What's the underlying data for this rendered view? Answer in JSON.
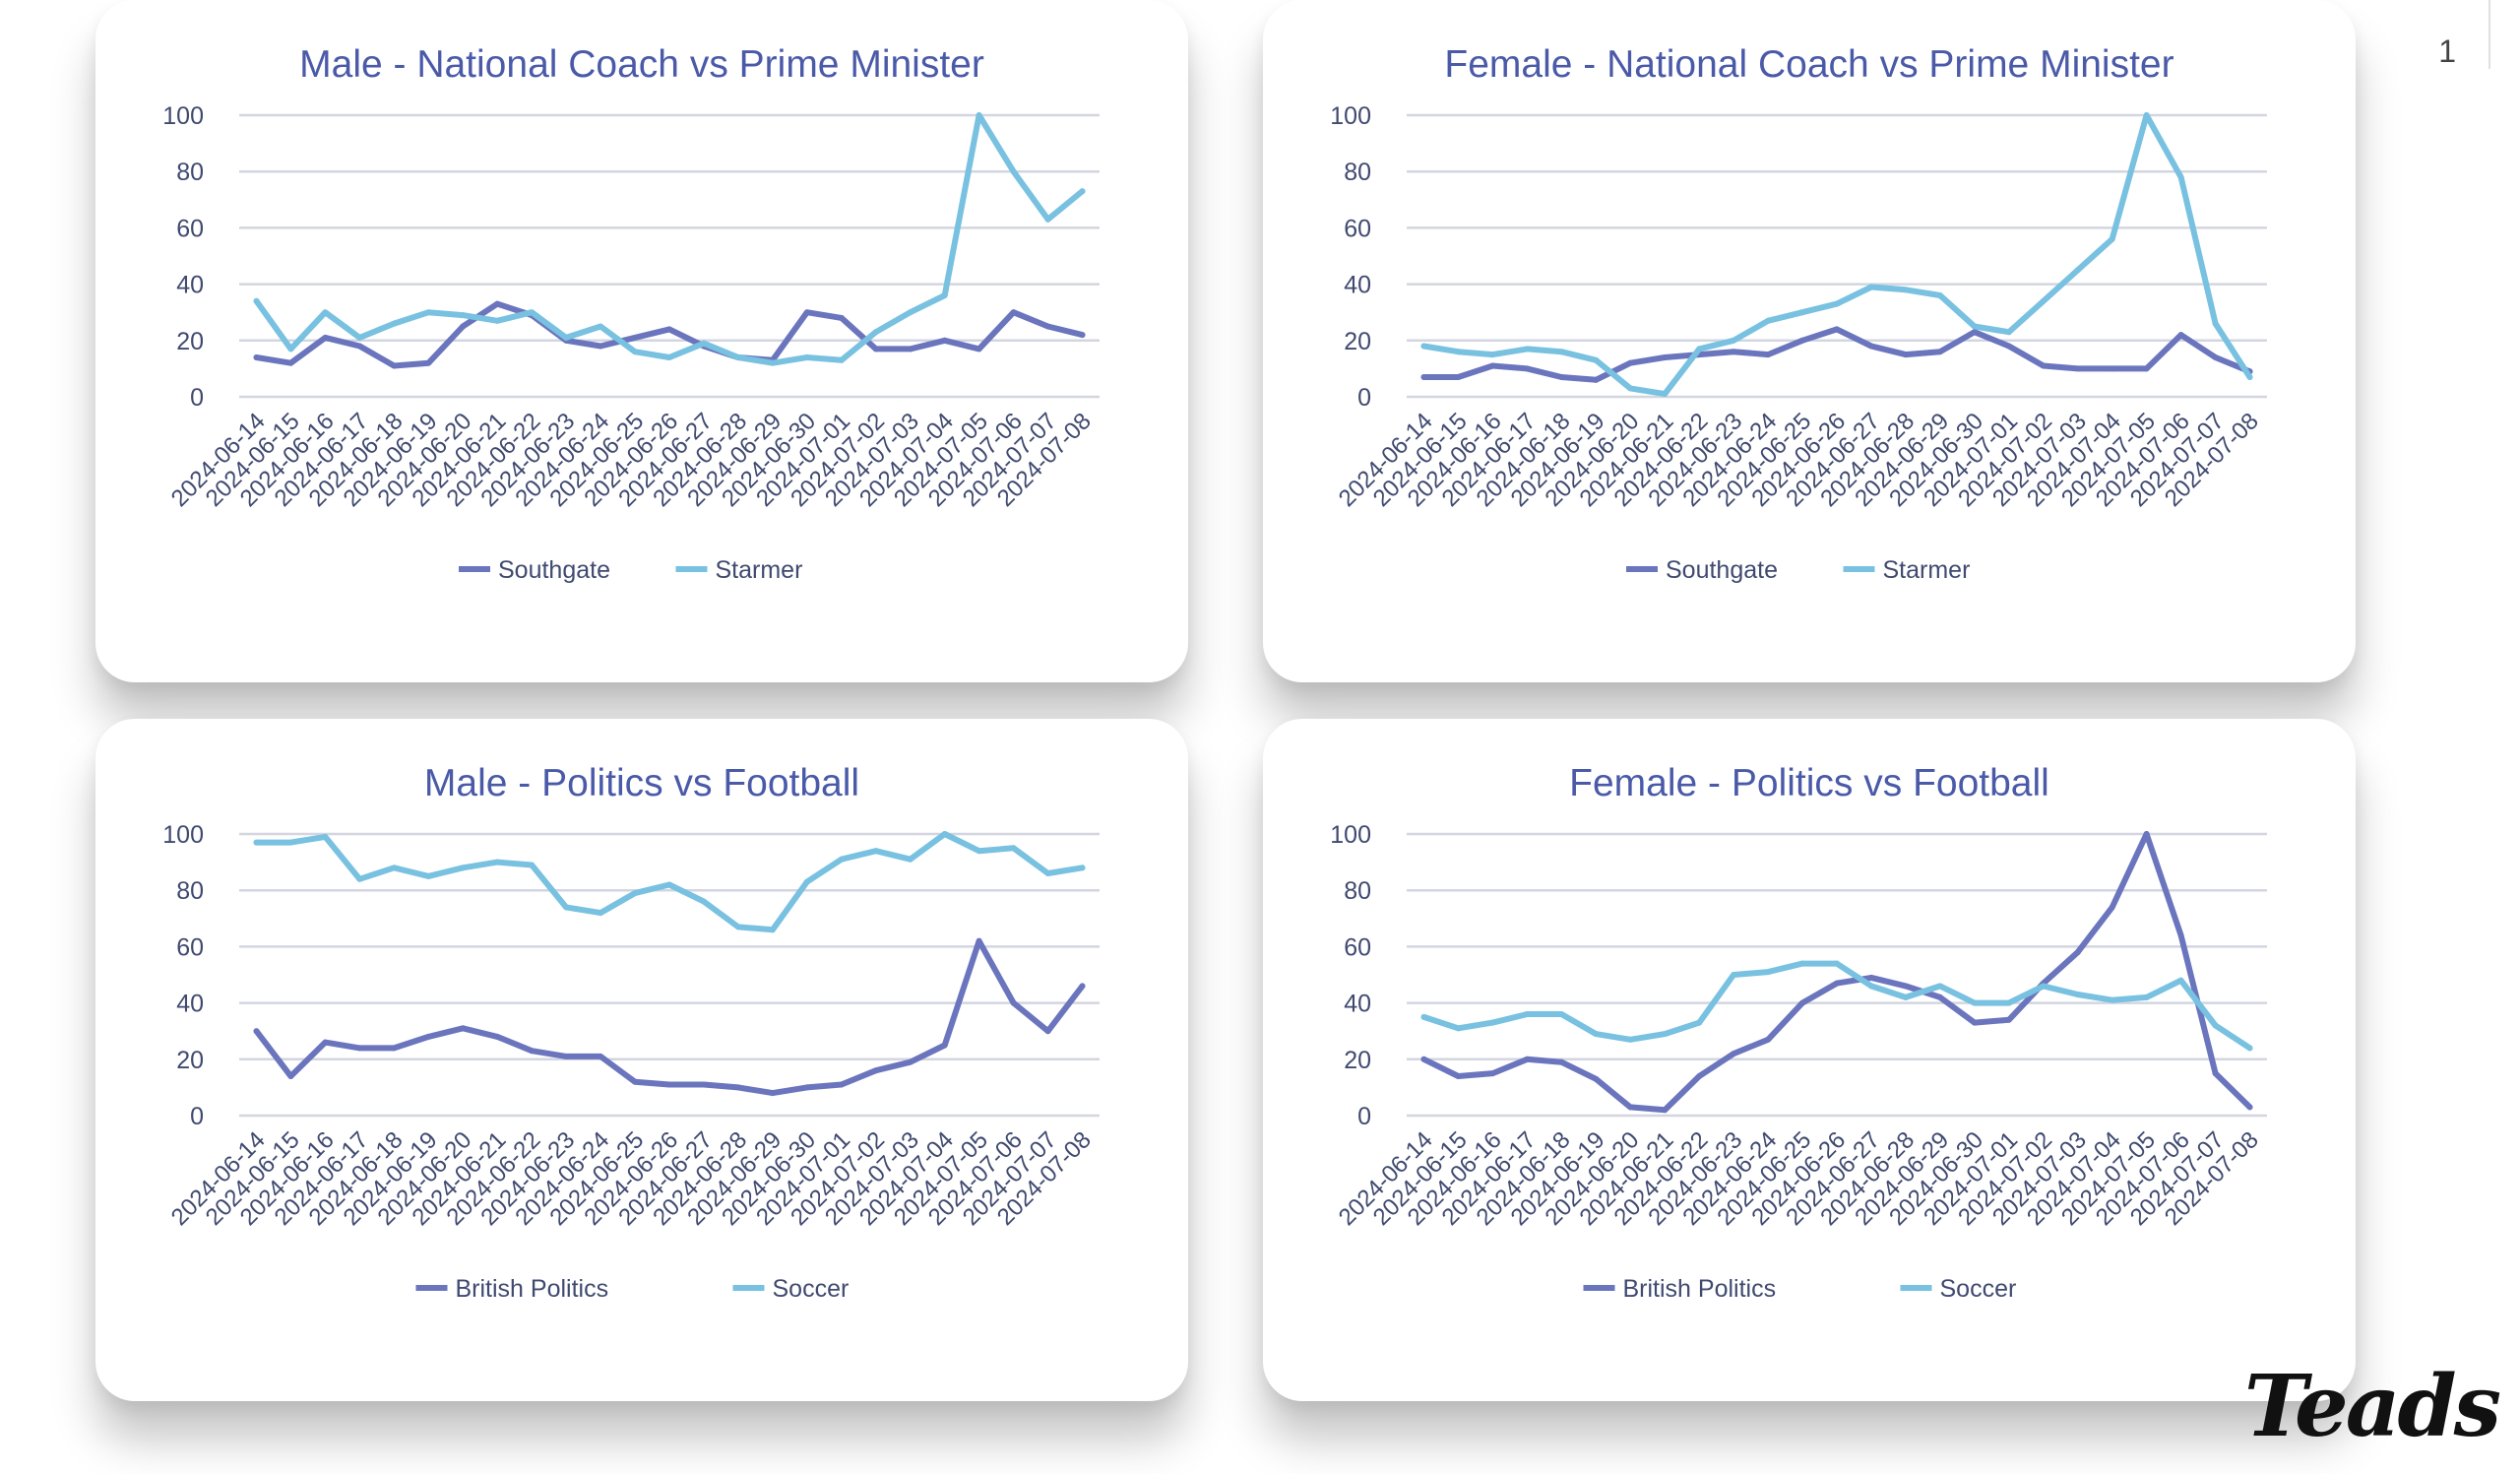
{
  "page": {
    "number": "1",
    "brand": "Teads"
  },
  "palette": {
    "series1": "#6b75bd",
    "series2": "#78c1e0",
    "grid": "#d3d6e0",
    "title": "#4a5aa8",
    "text": "#404a70"
  },
  "dates": [
    "2024-06-14",
    "2024-06-15",
    "2024-06-16",
    "2024-06-17",
    "2024-06-18",
    "2024-06-19",
    "2024-06-20",
    "2024-06-21",
    "2024-06-22",
    "2024-06-23",
    "2024-06-24",
    "2024-06-25",
    "2024-06-26",
    "2024-06-27",
    "2024-06-28",
    "2024-06-29",
    "2024-06-30",
    "2024-07-01",
    "2024-07-02",
    "2024-07-03",
    "2024-07-04",
    "2024-07-05",
    "2024-07-06",
    "2024-07-07",
    "2024-07-08"
  ],
  "chart_data": [
    {
      "type": "line",
      "title": "Male - National Coach vs Prime Minister",
      "ylim": [
        0,
        100
      ],
      "yticks": [
        "0",
        "20",
        "40",
        "60",
        "80",
        "100"
      ],
      "grid": true,
      "legend": "bottom",
      "series": [
        {
          "name": "Southgate",
          "values": [
            14,
            12,
            21,
            18,
            11,
            12,
            25,
            33,
            29,
            20,
            18,
            21,
            24,
            18,
            14,
            13,
            30,
            28,
            17,
            17,
            20,
            17,
            30,
            25,
            22
          ]
        },
        {
          "name": "Starmer",
          "values": [
            34,
            17,
            30,
            21,
            26,
            30,
            29,
            27,
            30,
            21,
            25,
            16,
            14,
            19,
            14,
            12,
            14,
            13,
            23,
            30,
            36,
            100,
            80,
            63,
            73
          ]
        }
      ]
    },
    {
      "type": "line",
      "title": "Female - National Coach vs Prime Minister",
      "ylim": [
        0,
        100
      ],
      "yticks": [
        "0",
        "20",
        "40",
        "60",
        "80",
        "100"
      ],
      "grid": true,
      "legend": "bottom",
      "series": [
        {
          "name": "Southgate",
          "values": [
            7,
            7,
            11,
            10,
            7,
            6,
            12,
            14,
            15,
            16,
            15,
            20,
            24,
            18,
            15,
            16,
            23,
            18,
            11,
            10,
            10,
            10,
            22,
            14,
            9
          ]
        },
        {
          "name": "Starmer",
          "values": [
            18,
            16,
            15,
            17,
            16,
            13,
            3,
            1,
            17,
            20,
            27,
            30,
            33,
            39,
            38,
            36,
            25,
            23,
            34,
            45,
            56,
            100,
            78,
            26,
            7
          ]
        }
      ]
    },
    {
      "type": "line",
      "title": "Male - Politics vs Football",
      "ylim": [
        0,
        100
      ],
      "yticks": [
        "0",
        "20",
        "40",
        "60",
        "80",
        "100"
      ],
      "grid": true,
      "legend": "bottom",
      "series": [
        {
          "name": "British Politics",
          "values": [
            30,
            14,
            26,
            24,
            24,
            28,
            31,
            28,
            23,
            21,
            21,
            12,
            11,
            11,
            10,
            8,
            10,
            11,
            16,
            19,
            25,
            62,
            40,
            30,
            46
          ]
        },
        {
          "name": "Soccer",
          "values": [
            97,
            97,
            99,
            84,
            88,
            85,
            88,
            90,
            89,
            74,
            72,
            79,
            82,
            76,
            67,
            66,
            83,
            91,
            94,
            91,
            100,
            94,
            95,
            86,
            88
          ]
        }
      ]
    },
    {
      "type": "line",
      "title": "Female - Politics vs Football",
      "ylim": [
        0,
        100
      ],
      "yticks": [
        "0",
        "20",
        "40",
        "60",
        "80",
        "100"
      ],
      "grid": true,
      "legend": "bottom",
      "series": [
        {
          "name": "British Politics",
          "values": [
            20,
            14,
            15,
            20,
            19,
            13,
            3,
            2,
            14,
            22,
            27,
            40,
            47,
            49,
            46,
            42,
            33,
            34,
            47,
            58,
            74,
            100,
            64,
            15,
            3
          ]
        },
        {
          "name": "Soccer",
          "values": [
            35,
            31,
            33,
            36,
            36,
            29,
            27,
            29,
            33,
            50,
            51,
            54,
            54,
            46,
            42,
            46,
            40,
            40,
            46,
            43,
            41,
            42,
            48,
            32,
            24
          ]
        }
      ]
    }
  ]
}
